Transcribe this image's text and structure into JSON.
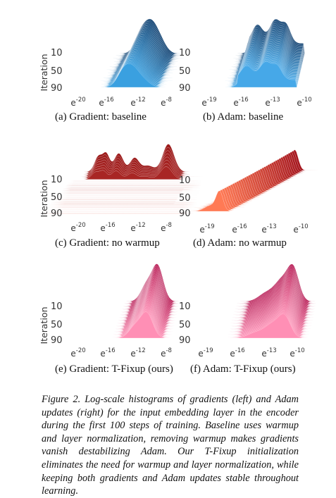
{
  "panels": [
    {
      "id": "a",
      "caption": "(a) Gradient: baseline",
      "ylabel": "Iteration",
      "yticks": [
        "10",
        "50",
        "90"
      ],
      "xticks": [
        {
          "base": "e",
          "exp": "-20"
        },
        {
          "base": "e",
          "exp": "-16"
        },
        {
          "base": "e",
          "exp": "-12"
        },
        {
          "base": "e",
          "exp": "-8"
        }
      ],
      "color_front": "#3aa0e0",
      "color_back": "#0b3d6e"
    },
    {
      "id": "b",
      "caption": "(b) Adam: baseline",
      "ylabel": "",
      "yticks": [
        "10",
        "50",
        "90"
      ],
      "xticks": [
        {
          "base": "e",
          "exp": "-19"
        },
        {
          "base": "e",
          "exp": "-16"
        },
        {
          "base": "e",
          "exp": "-13"
        },
        {
          "base": "e",
          "exp": "-10"
        }
      ],
      "color_front": "#46a8e8",
      "color_back": "#0b3d6e"
    },
    {
      "id": "c",
      "caption": "(c) Gradient: no warmup",
      "ylabel": "Iteration",
      "yticks": [
        "10",
        "50",
        "90"
      ],
      "xticks": [
        {
          "base": "e",
          "exp": "-20"
        },
        {
          "base": "e",
          "exp": "-16"
        },
        {
          "base": "e",
          "exp": "-12"
        },
        {
          "base": "e",
          "exp": "-8"
        }
      ],
      "color_front": "#e05a4c",
      "color_back": "#9c1b1b"
    },
    {
      "id": "d",
      "caption": "(d) Adam: no warmup",
      "ylabel": "",
      "yticks": [
        "10",
        "50",
        "90"
      ],
      "xticks": [
        {
          "base": "e",
          "exp": "-19"
        },
        {
          "base": "e",
          "exp": "-16"
        },
        {
          "base": "e",
          "exp": "-13"
        },
        {
          "base": "e",
          "exp": "-10"
        }
      ],
      "color_front": "#ff7a55",
      "color_back": "#a5161e"
    },
    {
      "id": "e",
      "caption": "(e) Gradient: T-Fixup (ours)",
      "ylabel": "Iteration",
      "yticks": [
        "10",
        "50",
        "90"
      ],
      "xticks": [
        {
          "base": "e",
          "exp": "-20"
        },
        {
          "base": "e",
          "exp": "-16"
        },
        {
          "base": "e",
          "exp": "-12"
        },
        {
          "base": "e",
          "exp": "-8"
        }
      ],
      "color_front": "#ff8fb5",
      "color_back": "#b5144f"
    },
    {
      "id": "f",
      "caption": "(f) Adam: T-Fixup (ours)",
      "ylabel": "",
      "yticks": [
        "10",
        "50",
        "90"
      ],
      "xticks": [
        {
          "base": "e",
          "exp": "-19"
        },
        {
          "base": "e",
          "exp": "-16"
        },
        {
          "base": "e",
          "exp": "-13"
        },
        {
          "base": "e",
          "exp": "-10"
        }
      ],
      "color_front": "#ff8fb5",
      "color_back": "#b5144f"
    }
  ],
  "figure_caption": {
    "lead": "Figure 2.",
    "body": "Log-scale histograms of gradients (left) and Adam updates (right) for the input embedding layer in the encoder during the first 100 steps of training. Baseline uses warmup and layer normalization, removing warmup makes gradients vanish destabilizing Adam. Our T-Fixup initialization eliminates the need for warmup and layer normalization, while keeping both gradients and Adam updates stable throughout learning."
  }
}
